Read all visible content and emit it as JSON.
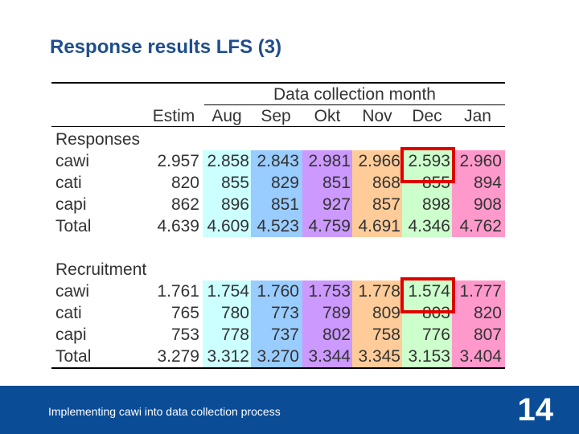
{
  "slide": {
    "title": "Response results LFS (3)",
    "footer_text": "Implementing cawi into data collection process",
    "page_number": "14"
  },
  "table": {
    "group_header": "Data collection month",
    "columns": [
      "Estim",
      "Aug",
      "Sep",
      "Okt",
      "Nov",
      "Dec",
      "Jan"
    ],
    "month_colors": [
      "#ccffff",
      "#99ccff",
      "#cc99ff",
      "#ffcc99",
      "#ccffcc",
      "#ff99cc"
    ],
    "highlight_color": "#e00000",
    "sections": [
      {
        "name": "Responses",
        "rows": [
          {
            "label": "cawi",
            "values": [
              "2.957",
              "2.858",
              "2.843",
              "2.981",
              "2.966",
              "2.593",
              "2.960"
            ]
          },
          {
            "label": "cati",
            "values": [
              "820",
              "855",
              "829",
              "851",
              "868",
              "855",
              "894"
            ]
          },
          {
            "label": "capi",
            "values": [
              "862",
              "896",
              "851",
              "927",
              "857",
              "898",
              "908"
            ]
          },
          {
            "label": "Total",
            "values": [
              "4.639",
              "4.609",
              "4.523",
              "4.759",
              "4.691",
              "4.346",
              "4.762"
            ]
          }
        ]
      },
      {
        "name": "Recruitment",
        "rows": [
          {
            "label": "cawi",
            "values": [
              "1.761",
              "1.754",
              "1.760",
              "1.753",
              "1.778",
              "1.574",
              "1.777"
            ]
          },
          {
            "label": "cati",
            "values": [
              "765",
              "780",
              "773",
              "789",
              "809",
              "803",
              "820"
            ]
          },
          {
            "label": "capi",
            "values": [
              "753",
              "778",
              "737",
              "802",
              "758",
              "776",
              "807"
            ]
          },
          {
            "label": "Total",
            "values": [
              "3.279",
              "3.312",
              "3.270",
              "3.344",
              "3.345",
              "3.153",
              "3.404"
            ]
          }
        ]
      }
    ]
  }
}
